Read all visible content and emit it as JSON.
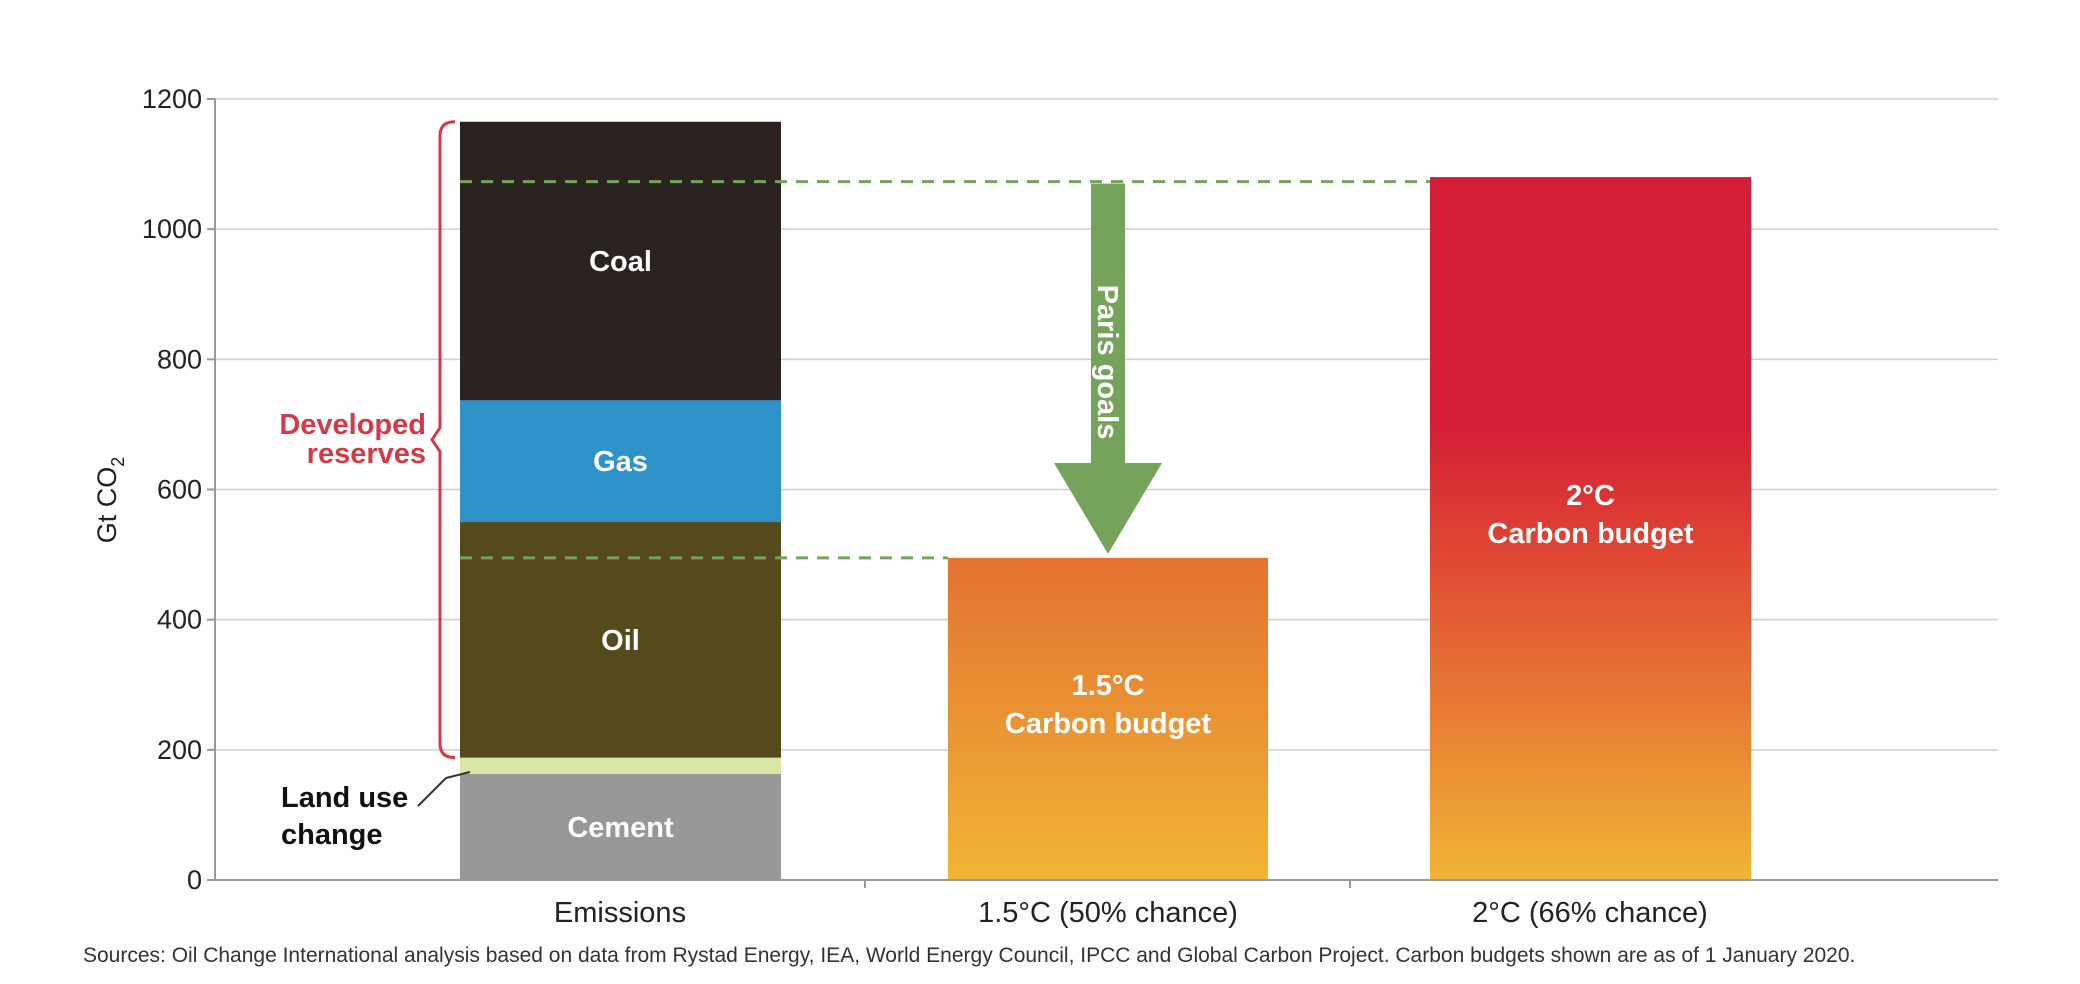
{
  "chart_data": {
    "type": "bar",
    "ylabel": "Gt CO",
    "ylabel_sub": "2",
    "ylim": [
      0,
      1200
    ],
    "yticks": [
      "0",
      "200",
      "400",
      "600",
      "800",
      "1000",
      "1200"
    ],
    "grid": true,
    "categories": [
      "Emissions",
      "1.5°C (50% chance)",
      "2°C (66% chance)"
    ],
    "stack_segments": [
      {
        "name": "Cement",
        "value": 163,
        "color": "#999897",
        "label": "Cement"
      },
      {
        "name": "Land use change",
        "value": 25,
        "color": "#d8e6a8",
        "label": ""
      },
      {
        "name": "Oil",
        "value": 362,
        "color": "#554a1c",
        "label": "Oil"
      },
      {
        "name": "Gas",
        "value": 187,
        "color": "#2d93c9",
        "label": "Gas"
      },
      {
        "name": "Coal",
        "value": 428,
        "color": "#2b2320",
        "label": "Coal"
      }
    ],
    "budgets": [
      {
        "category": "1.5°C (50% chance)",
        "value": 495,
        "label_line1": "1.5°C",
        "label_line2": "Carbon budget",
        "color_top": "#e37232",
        "color_bottom": "#f0b535"
      },
      {
        "category": "2°C (66% chance)",
        "value": 1080,
        "label_line1": "2°C",
        "label_line2": "Carbon budget",
        "color_top": "#d41d36",
        "color_bottom": "#f0b535"
      }
    ],
    "dashed_levels": [
      1073,
      495
    ],
    "arrow": {
      "label": "Paris goals",
      "from": 1070,
      "to": 495,
      "color": "#76a35c"
    },
    "annotations": {
      "developed_reserves_line1": "Developed",
      "developed_reserves_line2": "reserves",
      "developed_reserves_color": "#d43a45",
      "land_use_line1": "Land use",
      "land_use_line2": "change"
    }
  },
  "source": "Sources: Oil Change International analysis based on data from Rystad Energy, IEA, World Energy Council, IPCC and Global Carbon Project. Carbon budgets shown are as of 1 January 2020."
}
